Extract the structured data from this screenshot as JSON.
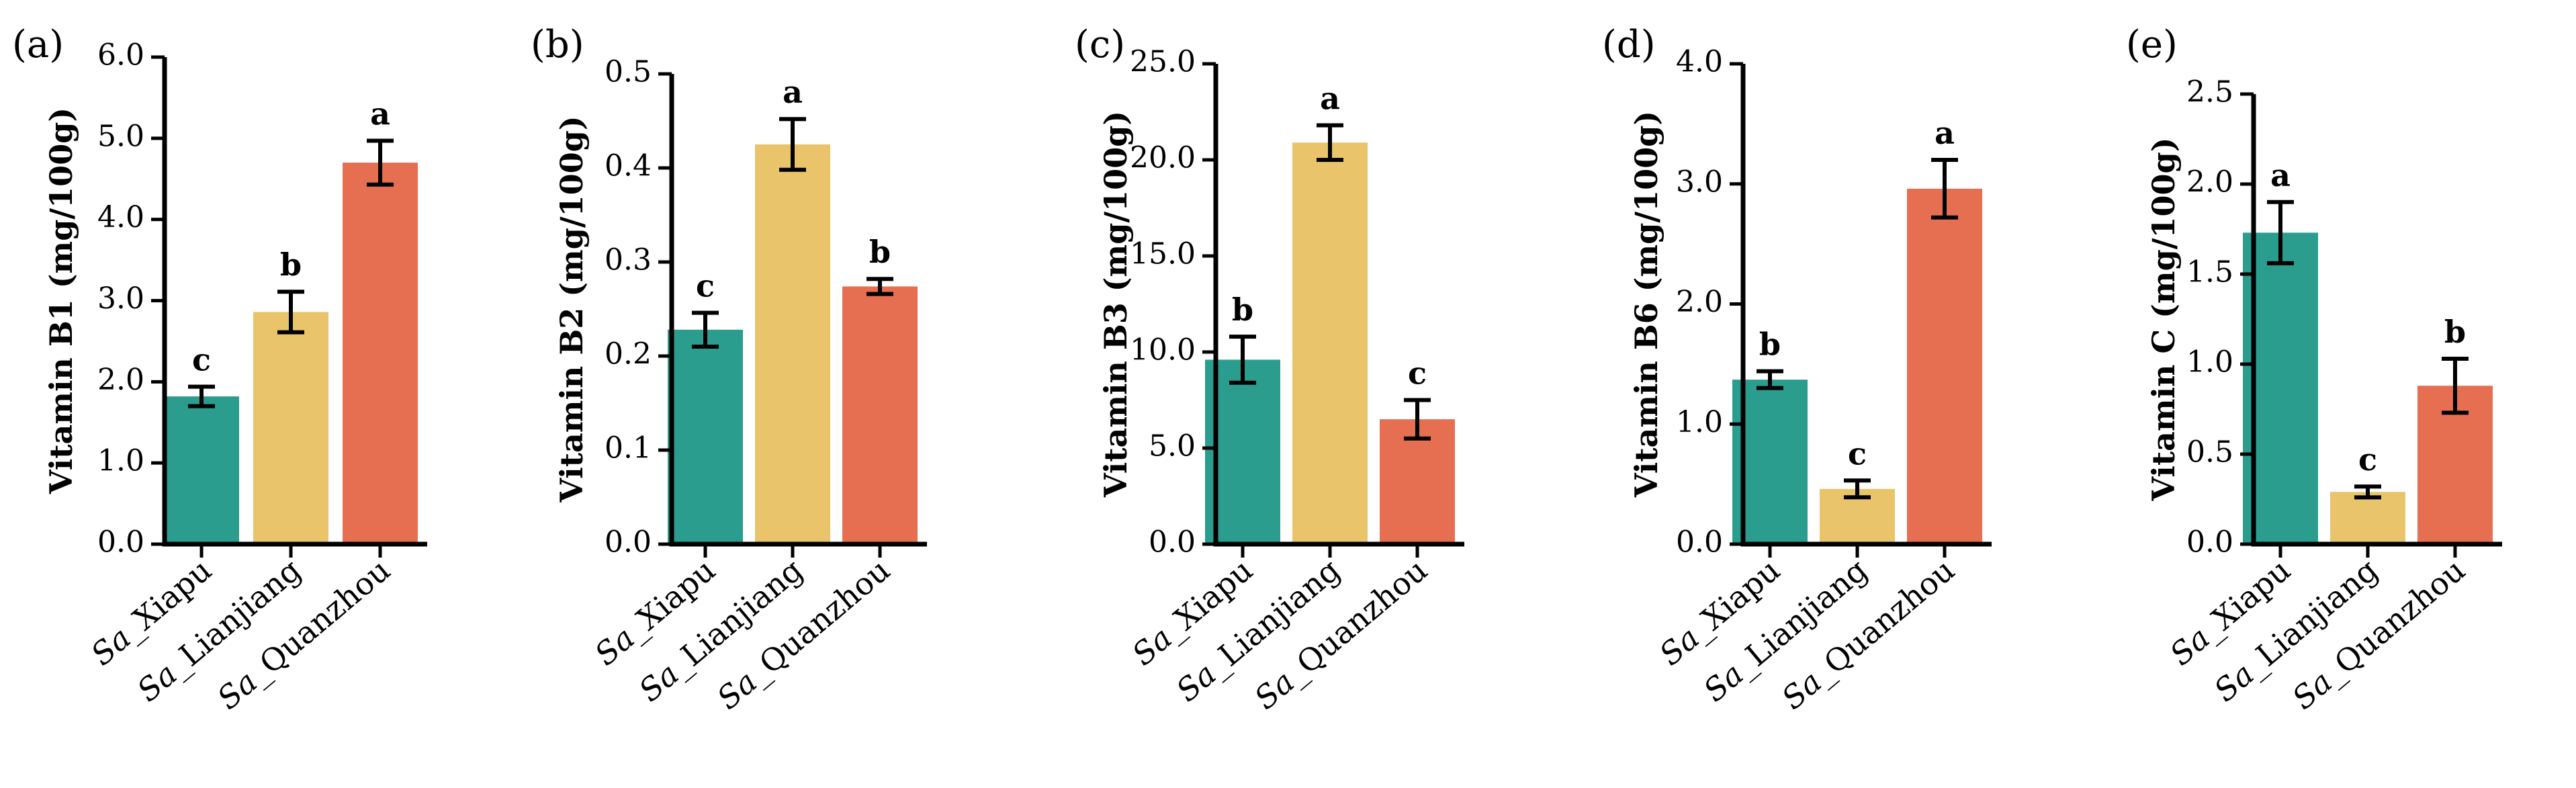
{
  "chart_data": [
    {
      "type": "bar",
      "panel_label": "(a)",
      "categories": [
        "Sa_Xiapu",
        "Sa_Lianjiang",
        "Sa_Quanzhou"
      ],
      "values": [
        1.82,
        2.86,
        4.7
      ],
      "errors": [
        0.12,
        0.25,
        0.27
      ],
      "significance": [
        "c",
        "b",
        "a"
      ],
      "ylabel": "Vitamin B1 (mg/100g)",
      "ylim": [
        0,
        6.0
      ],
      "yticks": [
        "0.0",
        "1.0",
        "2.0",
        "3.0",
        "4.0",
        "5.0",
        "6.0"
      ]
    },
    {
      "type": "bar",
      "panel_label": "(b)",
      "categories": [
        "Sa_Xiapu",
        "Sa_Lianjiang",
        "Sa_Quanzhou"
      ],
      "values": [
        0.228,
        0.425,
        0.274
      ],
      "errors": [
        0.018,
        0.027,
        0.008
      ],
      "significance": [
        "c",
        "a",
        "b"
      ],
      "ylabel": "Vitamin B2 (mg/100g)",
      "ylim": [
        0,
        0.5
      ],
      "yticks": [
        "0.0",
        "0.1",
        "0.2",
        "0.3",
        "0.4",
        "0.5"
      ]
    },
    {
      "type": "bar",
      "panel_label": "(c)",
      "categories": [
        "Sa_Xiapu",
        "Sa_Lianjiang",
        "Sa_Quanzhou"
      ],
      "values": [
        9.6,
        20.9,
        6.5
      ],
      "errors": [
        1.2,
        0.9,
        1.0
      ],
      "significance": [
        "b",
        "a",
        "c"
      ],
      "ylabel": "Vitamin B3 (mg/100g)",
      "ylim": [
        0,
        25.0
      ],
      "yticks": [
        "0.0",
        "5.0",
        "10.0",
        "15.0",
        "20.0",
        "25.0"
      ]
    },
    {
      "type": "bar",
      "panel_label": "(d)",
      "categories": [
        "Sa_Xiapu",
        "Sa_Lianjiang",
        "Sa_Quanzhou"
      ],
      "values": [
        1.37,
        0.46,
        2.96
      ],
      "errors": [
        0.07,
        0.07,
        0.24
      ],
      "significance": [
        "b",
        "c",
        "a"
      ],
      "ylabel": "Vitamin B6 (mg/100g)",
      "ylim": [
        0,
        4.0
      ],
      "yticks": [
        "0.0",
        "1.0",
        "2.0",
        "3.0",
        "4.0"
      ]
    },
    {
      "type": "bar",
      "panel_label": "(e)",
      "categories": [
        "Sa_Xiapu",
        "Sa_Lianjiang",
        "Sa_Quanzhou"
      ],
      "values": [
        1.73,
        0.29,
        0.88
      ],
      "errors": [
        0.17,
        0.03,
        0.15
      ],
      "significance": [
        "a",
        "c",
        "b"
      ],
      "ylabel": "Vitamin C (mg/100g)",
      "ylim": [
        0,
        2.5
      ],
      "yticks": [
        "0.0",
        "0.5",
        "1.0",
        "1.5",
        "2.0",
        "2.5"
      ]
    }
  ],
  "colors": [
    "#2a9d8f",
    "#e9c46a",
    "#e76f51"
  ],
  "axis_color": "#000000",
  "legend": "none",
  "grid": false
}
